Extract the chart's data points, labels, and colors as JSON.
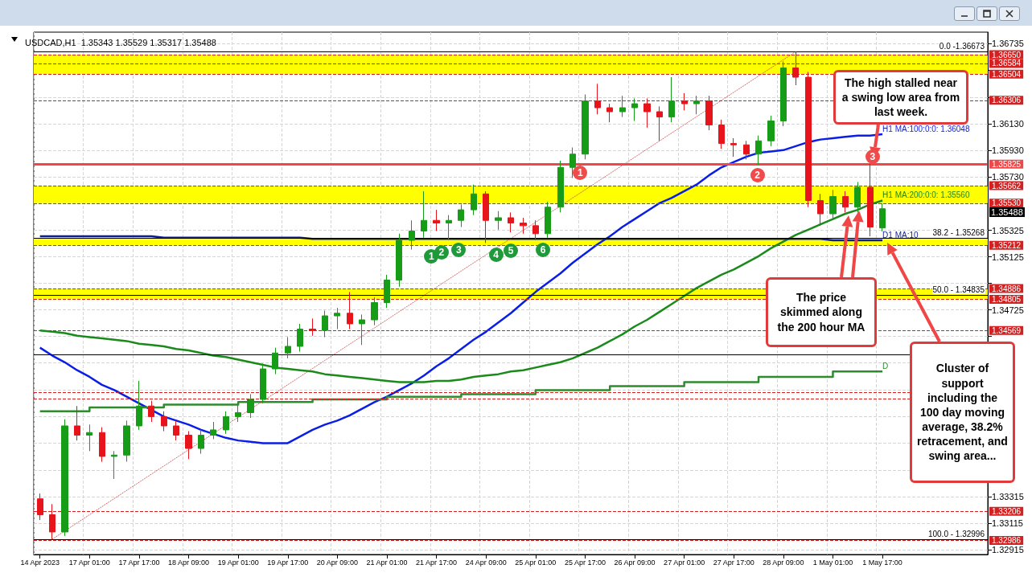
{
  "chart_data": {
    "type": "candlestick",
    "title": "USDCAD,H1  1.35343 1.35529 1.35317 1.35488",
    "categories": [
      "14 Apr 2023",
      null,
      null,
      null,
      "17 Apr 01:00",
      null,
      null,
      null,
      "17 Apr 17:00",
      null,
      null,
      null,
      "18 Apr 09:00",
      null,
      null,
      null,
      "19 Apr 01:00",
      null,
      null,
      null,
      "19 Apr 17:00",
      null,
      null,
      null,
      "20 Apr 09:00",
      null,
      null,
      null,
      "21 Apr 01:00",
      null,
      null,
      null,
      "21 Apr 17:00",
      null,
      null,
      null,
      "24 Apr 09:00",
      null,
      null,
      null,
      "25 Apr 01:00",
      null,
      null,
      null,
      "25 Apr 17:00",
      null,
      null,
      null,
      "26 Apr 09:00",
      null,
      null,
      null,
      "27 Apr 01:00",
      null,
      null,
      null,
      "27 Apr 17:00",
      null,
      null,
      null,
      "28 Apr 09:00",
      null,
      null,
      null,
      "1 May 01:00",
      null,
      null,
      null,
      "1 May 17:00",
      null,
      null,
      null,
      null,
      null,
      null,
      null,
      null
    ],
    "ohlc": [
      [
        1.333,
        1.3334,
        1.3314,
        1.3318
      ],
      [
        1.3318,
        1.3326,
        1.32996,
        1.3305
      ],
      [
        1.3305,
        1.339,
        1.3302,
        1.3385
      ],
      [
        1.3385,
        1.34,
        1.3374,
        1.3378
      ],
      [
        1.3378,
        1.3386,
        1.3366,
        1.338
      ],
      [
        1.338,
        1.3384,
        1.3358,
        1.3362
      ],
      [
        1.3362,
        1.3366,
        1.3345,
        1.3363
      ],
      [
        1.3363,
        1.3389,
        1.3358,
        1.3385
      ],
      [
        1.3385,
        1.3419,
        1.3382,
        1.34
      ],
      [
        1.34,
        1.3404,
        1.3388,
        1.3392
      ],
      [
        1.3392,
        1.3396,
        1.3381,
        1.3385
      ],
      [
        1.3385,
        1.3389,
        1.3374,
        1.3378
      ],
      [
        1.3378,
        1.3381,
        1.336,
        1.3368
      ],
      [
        1.3368,
        1.3382,
        1.3364,
        1.3378
      ],
      [
        1.3378,
        1.3388,
        1.3375,
        1.3382
      ],
      [
        1.3382,
        1.3396,
        1.3379,
        1.3392
      ],
      [
        1.3392,
        1.3401,
        1.3388,
        1.3395
      ],
      [
        1.3395,
        1.3409,
        1.3391,
        1.3405
      ],
      [
        1.3405,
        1.3432,
        1.3402,
        1.3428
      ],
      [
        1.3428,
        1.3444,
        1.3424,
        1.344
      ],
      [
        1.344,
        1.3452,
        1.3436,
        1.3445
      ],
      [
        1.3445,
        1.3462,
        1.3441,
        1.3458
      ],
      [
        1.3458,
        1.3466,
        1.3453,
        1.3457
      ],
      [
        1.3457,
        1.3472,
        1.3452,
        1.3468
      ],
      [
        1.3468,
        1.3474,
        1.3458,
        1.347
      ],
      [
        1.347,
        1.3486,
        1.3458,
        1.3462
      ],
      [
        1.3462,
        1.3469,
        1.3446,
        1.3465
      ],
      [
        1.3465,
        1.3482,
        1.3461,
        1.3478
      ],
      [
        1.3478,
        1.3499,
        1.3474,
        1.3495
      ],
      [
        1.3495,
        1.353,
        1.349,
        1.3525
      ],
      [
        1.3525,
        1.354,
        1.3518,
        1.3532
      ],
      [
        1.3532,
        1.3562,
        1.3527,
        1.354
      ],
      [
        1.354,
        1.3548,
        1.3532,
        1.3538
      ],
      [
        1.3538,
        1.3544,
        1.3525,
        1.354
      ],
      [
        1.354,
        1.3552,
        1.3535,
        1.3548
      ],
      [
        1.3548,
        1.3567,
        1.3544,
        1.356
      ],
      [
        1.356,
        1.3562,
        1.3523,
        1.354
      ],
      [
        1.354,
        1.3547,
        1.3533,
        1.3542
      ],
      [
        1.3542,
        1.3546,
        1.3531,
        1.3538
      ],
      [
        1.3538,
        1.3542,
        1.353,
        1.3536
      ],
      [
        1.3536,
        1.354,
        1.3525,
        1.353
      ],
      [
        1.353,
        1.3554,
        1.3527,
        1.355
      ],
      [
        1.355,
        1.3585,
        1.3546,
        1.358
      ],
      [
        1.358,
        1.3595,
        1.3572,
        1.359
      ],
      [
        1.359,
        1.3635,
        1.3586,
        1.363
      ],
      [
        1.363,
        1.3643,
        1.362,
        1.3625
      ],
      [
        1.3625,
        1.3628,
        1.3614,
        1.3622
      ],
      [
        1.3622,
        1.3634,
        1.3618,
        1.3625
      ],
      [
        1.3625,
        1.3632,
        1.3615,
        1.3628
      ],
      [
        1.3628,
        1.3632,
        1.361,
        1.3622
      ],
      [
        1.3622,
        1.3626,
        1.36,
        1.3618
      ],
      [
        1.3618,
        1.3648,
        1.3614,
        1.363
      ],
      [
        1.363,
        1.3636,
        1.3623,
        1.3628
      ],
      [
        1.3628,
        1.3634,
        1.362,
        1.363
      ],
      [
        1.363,
        1.3634,
        1.3608,
        1.3612
      ],
      [
        1.3612,
        1.3616,
        1.3594,
        1.3598
      ],
      [
        1.3598,
        1.3602,
        1.3588,
        1.3597
      ],
      [
        1.3597,
        1.36,
        1.3586,
        1.359
      ],
      [
        1.359,
        1.3604,
        1.3582,
        1.36
      ],
      [
        1.36,
        1.3619,
        1.3596,
        1.3615
      ],
      [
        1.3615,
        1.366,
        1.3611,
        1.3655
      ],
      [
        1.3655,
        1.36673,
        1.3642,
        1.3648
      ],
      [
        1.3648,
        1.3652,
        1.355,
        1.3555
      ],
      [
        1.3555,
        1.356,
        1.3536,
        1.3545
      ],
      [
        1.3545,
        1.3563,
        1.3541,
        1.3558
      ],
      [
        1.3558,
        1.3562,
        1.3546,
        1.355
      ],
      [
        1.355,
        1.3569,
        1.3546,
        1.3565
      ],
      [
        1.3565,
        1.35825,
        1.3528,
        1.3535
      ],
      [
        1.35343,
        1.35529,
        1.35317,
        1.35488
      ],
      null,
      null,
      null,
      null,
      null,
      null,
      null,
      null
    ],
    "colors": [
      "#e8141b",
      "#e8141b",
      "#179c17",
      "#e8141b",
      "#179c17",
      "#e8141b",
      "#179c17",
      "#179c17",
      "#179c17",
      "#e8141b",
      "#e8141b",
      "#e8141b",
      "#e8141b",
      "#179c17",
      "#179c17",
      "#179c17",
      "#179c17",
      "#179c17",
      "#179c17",
      "#179c17",
      "#179c17",
      "#179c17",
      "#e8141b",
      "#179c17",
      "#179c17",
      "#e8141b",
      "#179c17",
      "#179c17",
      "#179c17",
      "#179c17",
      "#179c17",
      "#179c17",
      "#e8141b",
      "#179c17",
      "#179c17",
      "#179c17",
      "#e8141b",
      "#179c17",
      "#e8141b",
      "#e8141b",
      "#e8141b",
      "#179c17",
      "#179c17",
      "#179c17",
      "#179c17",
      "#e8141b",
      "#e8141b",
      "#179c17",
      "#179c17",
      "#e8141b",
      "#e8141b",
      "#179c17",
      "#e8141b",
      "#179c17",
      "#e8141b",
      "#e8141b",
      "#e8141b",
      "#e8141b",
      "#179c17",
      "#179c17",
      "#179c17",
      "#e8141b",
      "#e8141b",
      "#e8141b",
      "#179c17",
      "#e8141b",
      "#179c17",
      "#e8141b",
      "#179c17",
      null,
      null,
      null,
      null,
      null,
      null,
      null,
      null
    ],
    "series": [
      {
        "type": "line",
        "name": "H1 MA:100:0:0: 1.36048",
        "color": "#0a1ee6",
        "values": [
          1.3444,
          1.3438,
          1.3433,
          1.3427,
          1.3422,
          1.3416,
          1.3412,
          1.3407,
          1.3402,
          1.3397,
          1.3392,
          1.3389,
          1.3386,
          1.3382,
          1.3379,
          1.3376,
          1.3374,
          1.3373,
          1.3372,
          1.3372,
          1.3372,
          1.3377,
          1.3382,
          1.3386,
          1.3389,
          1.3393,
          1.3398,
          1.3403,
          1.3407,
          1.3412,
          1.3417,
          1.3423,
          1.343,
          1.3436,
          1.3443,
          1.345,
          1.3456,
          1.3463,
          1.347,
          1.3478,
          1.3486,
          1.3493,
          1.35,
          1.3508,
          1.3515,
          1.3522,
          1.3528,
          1.3535,
          1.3541,
          1.3547,
          1.3553,
          1.3557,
          1.3562,
          1.3567,
          1.3574,
          1.358,
          1.3584,
          1.3588,
          1.3591,
          1.3592,
          1.3593,
          1.3596,
          1.3599,
          1.3601,
          1.3602,
          1.3603,
          1.3604,
          1.3604,
          1.3605,
          null,
          null,
          null,
          null,
          null,
          null,
          null,
          null
        ]
      },
      {
        "type": "line",
        "name": "H1 MA:200:0:0: 1.35560",
        "color": "#1a8a1a",
        "values": [
          1.3457,
          1.3456,
          1.3455,
          1.3453,
          1.3452,
          1.3451,
          1.345,
          1.3449,
          1.3447,
          1.3446,
          1.3445,
          1.3443,
          1.3442,
          1.344,
          1.3438,
          1.3437,
          1.3435,
          1.3433,
          1.3431,
          1.3429,
          1.3428,
          1.3427,
          1.3426,
          1.3424,
          1.3423,
          1.3422,
          1.3421,
          1.342,
          1.3419,
          1.3418,
          1.3418,
          1.3418,
          1.3419,
          1.3419,
          1.342,
          1.3422,
          1.3423,
          1.3424,
          1.3426,
          1.3427,
          1.3429,
          1.3431,
          1.3433,
          1.3436,
          1.344,
          1.3444,
          1.3449,
          1.3454,
          1.346,
          1.3465,
          1.3471,
          1.3477,
          1.3483,
          1.3489,
          1.3494,
          1.3499,
          1.3503,
          1.3508,
          1.3513,
          1.3519,
          1.3524,
          1.3529,
          1.3533,
          1.3537,
          1.3541,
          1.3545,
          1.3548,
          1.3552,
          1.3555,
          null,
          null,
          null,
          null,
          null,
          null,
          null,
          null
        ]
      },
      {
        "type": "line",
        "name": "D1 MA:10",
        "color": "#0a1e96",
        "values": [
          1.3528,
          1.3528,
          1.3528,
          1.3528,
          1.3528,
          1.3528,
          1.3528,
          1.3528,
          1.3528,
          1.3528,
          1.3527,
          1.3527,
          1.3527,
          1.3527,
          1.3527,
          1.3527,
          1.3527,
          1.3527,
          1.3527,
          1.3527,
          1.3527,
          1.3527,
          1.3526,
          1.3526,
          1.3526,
          1.3526,
          1.3526,
          1.3526,
          1.3526,
          1.3526,
          1.3526,
          1.3526,
          1.3526,
          1.3526,
          1.3526,
          1.3526,
          1.3526,
          1.3526,
          1.3526,
          1.3526,
          1.3526,
          1.3526,
          1.3526,
          1.3526,
          1.3526,
          1.3526,
          1.3526,
          1.3526,
          1.3526,
          1.3526,
          1.3526,
          1.3526,
          1.3526,
          1.3526,
          1.3526,
          1.3526,
          1.3526,
          1.3526,
          1.3526,
          1.3526,
          1.3526,
          1.3526,
          1.3526,
          1.3526,
          1.3525,
          1.3525,
          1.3525,
          1.3525,
          1.3525,
          null,
          null,
          null,
          null,
          null,
          null,
          null,
          null
        ]
      },
      {
        "type": "step",
        "name": "D",
        "color": "#2e8b2e",
        "values": [
          1.3396,
          1.3396,
          1.3396,
          1.3396,
          1.3399,
          1.3399,
          1.3399,
          1.3399,
          1.3399,
          1.3399,
          1.3401,
          1.3401,
          1.3401,
          1.3401,
          1.3401,
          1.3401,
          1.3403,
          1.3403,
          1.3403,
          1.3403,
          1.3403,
          1.3403,
          1.3405,
          1.3405,
          1.3405,
          1.3405,
          1.3405,
          1.3405,
          1.3407,
          1.3407,
          1.3407,
          1.3407,
          1.3407,
          1.3407,
          1.3409,
          1.3409,
          1.3409,
          1.3409,
          1.3409,
          1.3409,
          1.3412,
          1.3412,
          1.3412,
          1.3412,
          1.3412,
          1.3412,
          1.3415,
          1.3415,
          1.3415,
          1.3415,
          1.3415,
          1.3415,
          1.3418,
          1.3418,
          1.3418,
          1.3418,
          1.3418,
          1.3418,
          1.3422,
          1.3422,
          1.3422,
          1.3422,
          1.3422,
          1.3422,
          1.3426,
          1.3426,
          1.3426,
          1.3426,
          1.3426,
          null,
          null,
          null,
          null,
          null,
          null,
          null,
          null
        ]
      },
      {
        "type": "line",
        "color": "#c83232",
        "line_style": "dotted",
        "values": [
          null,
          1.32996,
          null,
          null,
          null,
          null,
          null,
          null,
          null,
          null,
          null,
          null,
          null,
          null,
          null,
          null,
          null,
          null,
          null,
          null,
          null,
          null,
          null,
          null,
          null,
          null,
          null,
          null,
          null,
          null,
          null,
          null,
          null,
          null,
          null,
          null,
          null,
          null,
          null,
          null,
          null,
          null,
          null,
          null,
          null,
          null,
          null,
          null,
          null,
          null,
          null,
          null,
          null,
          null,
          null,
          null,
          null,
          null,
          null,
          null,
          null,
          1.36673,
          null,
          null,
          null,
          null,
          null,
          null,
          null,
          null,
          null,
          null,
          null,
          null,
          null,
          null,
          null
        ]
      }
    ],
    "ylim": [
      1.3288,
      1.3682
    ],
    "yticks": [
      1.36735,
      {
        "value": 1.36535,
        "label": null
      },
      {
        "value": 1.3633,
        "label": null
      },
      {
        "value": 1.3613,
        "label": "1.36130"
      },
      {
        "value": 1.3593,
        "label": "1.35930"
      },
      {
        "value": 1.3573,
        "label": "1.35730"
      },
      1.35325,
      1.35125,
      {
        "value": 1.34925,
        "label": null
      },
      1.34725,
      {
        "value": 1.34525,
        "label": null
      },
      {
        "value": 1.34325,
        "label": null
      },
      {
        "value": 1.3412,
        "label": null
      },
      {
        "value": 1.3392,
        "label": null
      },
      {
        "value": 1.3372,
        "label": null
      },
      {
        "value": 1.33515,
        "label": null
      },
      1.33315,
      1.33115,
      1.32915
    ],
    "grid": true,
    "marker": "none",
    "bands": [
      {
        "axis": "y",
        "from": 1.36504,
        "to": 1.3665,
        "color": "#ffff00"
      },
      {
        "axis": "y",
        "from": 1.3553,
        "to": 1.35662,
        "color": "#ffff00"
      },
      {
        "axis": "y",
        "from": 1.35212,
        "to": 1.35268,
        "color": "#ffff00"
      },
      {
        "axis": "y",
        "from": 1.34805,
        "to": 1.34886,
        "color": "#ffff00"
      }
    ],
    "ref_lines": [
      {
        "axis": "y",
        "value": 1.3665,
        "label": "1.36650",
        "color": "#d42020",
        "line_style": "dashed"
      },
      {
        "axis": "y",
        "value": 1.36584,
        "label": "1.36584",
        "color": "#d42020",
        "line_style": "dashed"
      },
      {
        "axis": "y",
        "value": 1.36504,
        "label": "1.36504",
        "color": "#d42020",
        "line_style": "dashed"
      },
      {
        "axis": "y",
        "value": 1.36306,
        "label": "1.36306",
        "color": "#d42020",
        "line_style": "dashed"
      },
      {
        "axis": "y",
        "value": 1.35825,
        "label": "1.35825",
        "color": "#f04848",
        "line_style": "solid"
      },
      {
        "axis": "y",
        "value": 1.35662,
        "label": "1.35662",
        "color": "#d42020",
        "line_style": "dashed"
      },
      {
        "axis": "y",
        "value": 1.3553,
        "label": "1.35530",
        "color": "#d42020",
        "line_style": "dashed"
      },
      {
        "axis": "y",
        "value": 1.35212,
        "label": "1.35212",
        "color": "#d42020",
        "line_style": "dashed"
      },
      {
        "axis": "y",
        "value": 1.34886,
        "label": "1.34886",
        "color": "#d42020",
        "line_style": "dashed"
      },
      {
        "axis": "y",
        "value": 1.34805,
        "label": "1.34805",
        "color": "#d42020",
        "line_style": "dashed"
      },
      {
        "axis": "y",
        "value": 1.34569,
        "label": "1.34569",
        "color": "#d42020",
        "line_style": "dashed"
      },
      {
        "axis": "y",
        "value": 1.34102,
        "label": null,
        "color": "#d42020",
        "line_style": "dashed"
      },
      {
        "axis": "y",
        "value": 1.34053,
        "label": null,
        "color": "#d42020",
        "line_style": "dashed"
      },
      {
        "axis": "y",
        "value": 1.33206,
        "label": "1.33206",
        "color": "#d42020",
        "line_style": "dashed"
      },
      {
        "axis": "y",
        "value": 1.32986,
        "label": "1.32986",
        "color": "#d42020",
        "line_style": "dashed"
      },
      {
        "axis": "y",
        "value": 1.36673,
        "label": null,
        "color": "#000000",
        "line_style": "solid"
      },
      {
        "axis": "y",
        "value": 1.35268,
        "label": null,
        "color": "#000000",
        "line_style": "solid"
      },
      {
        "axis": "y",
        "value": 1.34835,
        "label": null,
        "color": "#000000",
        "line_style": "solid"
      },
      {
        "axis": "y",
        "value": 1.3439,
        "label": null,
        "color": "#000000",
        "line_style": "solid"
      },
      {
        "axis": "y",
        "value": 1.32996,
        "label": null,
        "color": "#000000",
        "line_style": "solid"
      }
    ],
    "annotations": [
      "The high stalled near a swing low area from last week.",
      "The price skimmed along the 200 hour MA",
      "Cluster of support including the 100 day moving average, 38.2% retracement, and swing area...",
      {
        "text": "1",
        "y": 1.3513
      },
      {
        "text": "2",
        "y": 1.3516
      },
      {
        "text": "3",
        "y": 1.3518
      },
      {
        "text": "4",
        "y": 1.3514
      },
      {
        "text": "5",
        "y": 1.3517
      },
      {
        "text": "6",
        "y": 1.3518
      },
      {
        "text": "1",
        "y": 1.3576
      },
      {
        "text": "2",
        "y": 1.3574
      },
      {
        "text": "3",
        "y": 1.3588
      },
      "1.35488",
      {
        "text": "0.0 -1.36673",
        "y": 1.36673
      },
      {
        "text": "38.2 - 1.35268",
        "y": 1.35268
      },
      {
        "text": "50.0 - 1.34835",
        "y": 1.34835
      },
      {
        "text": "100.0 - 1.32996",
        "y": 1.32996
      }
    ]
  }
}
